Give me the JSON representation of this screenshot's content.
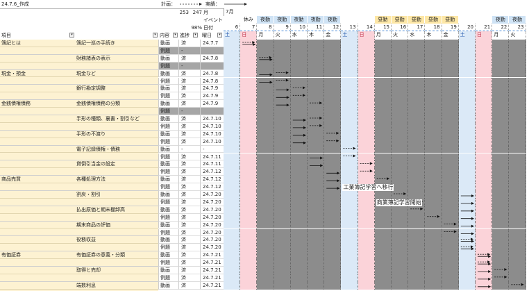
{
  "header": {
    "created": "24.7.6_作成",
    "plan_label": "計画：",
    "actual_label": "実績：",
    "total_count": "253",
    "done_count": "247",
    "month_label": "月",
    "percent": "98%",
    "event_label": "イベント",
    "date_label": "日付",
    "weekday_label": "曜日"
  },
  "columns": {
    "item": "項目",
    "content": "内容",
    "progress": "進捗"
  },
  "month": {
    "label": "7月"
  },
  "days": [
    {
      "d": "6",
      "w": "土",
      "kind": "sat",
      "event": ""
    },
    {
      "d": "7",
      "w": "日",
      "kind": "sun",
      "event": "休み"
    },
    {
      "d": "8",
      "w": "月",
      "kind": "work",
      "event": "夜勤"
    },
    {
      "d": "9",
      "w": "火",
      "kind": "work",
      "event": "夜勤"
    },
    {
      "d": "10",
      "w": "水",
      "kind": "work",
      "event": "夜勤"
    },
    {
      "d": "11",
      "w": "木",
      "kind": "work",
      "event": "夜勤"
    },
    {
      "d": "12",
      "w": "金",
      "kind": "work",
      "event": "夜勤"
    },
    {
      "d": "13",
      "w": "土",
      "kind": "sat",
      "event": ""
    },
    {
      "d": "14",
      "w": "日",
      "kind": "sun",
      "event": ""
    },
    {
      "d": "15",
      "w": "月",
      "kind": "work",
      "event": "昼勤"
    },
    {
      "d": "16",
      "w": "火",
      "kind": "work",
      "event": "昼勤"
    },
    {
      "d": "17",
      "w": "水",
      "kind": "work",
      "event": "昼勤"
    },
    {
      "d": "18",
      "w": "木",
      "kind": "work",
      "event": "昼勤"
    },
    {
      "d": "19",
      "w": "金",
      "kind": "work",
      "event": "昼勤"
    },
    {
      "d": "20",
      "w": "土",
      "kind": "sat",
      "event": ""
    },
    {
      "d": "21",
      "w": "日",
      "kind": "sun",
      "event": ""
    },
    {
      "d": "22",
      "w": "月",
      "kind": "work",
      "event": "夜勤"
    },
    {
      "d": "23",
      "w": "火",
      "kind": "work",
      "event": "夜勤"
    }
  ],
  "rows": [
    {
      "cat": "簿記とは",
      "task": "簿記一巡の手続き",
      "type": "動画",
      "prog": "済",
      "date": "24.7.7",
      "plan": 1,
      "act": 1,
      "cont": false,
      "act_len": 1,
      "shade": false
    },
    {
      "cat": "",
      "task": "",
      "type": "例題",
      "prog": "-",
      "date": "",
      "plan": null,
      "act": null,
      "cont": true,
      "shade": true
    },
    {
      "cat": "",
      "task": "財務諸表の表示",
      "type": "動画",
      "prog": "済",
      "date": "24.7.8",
      "plan": 2,
      "act": 2,
      "cont": false,
      "shade": false
    },
    {
      "cat": "",
      "task": "",
      "type": "例題",
      "prog": "-",
      "date": "",
      "plan": null,
      "act": null,
      "cont": true,
      "shade": true
    },
    {
      "cat": "現金・預金",
      "task": "現金など",
      "type": "動画",
      "prog": "済",
      "date": "24.7.8",
      "plan": 3,
      "act": 2,
      "cont": false,
      "shade": false
    },
    {
      "cat": "",
      "task": "",
      "type": "例題",
      "prog": "済",
      "date": "24.7.8",
      "plan": 3,
      "act": 2,
      "cont": true,
      "shade": false
    },
    {
      "cat": "",
      "task": "銀行勘定調整",
      "type": "動画",
      "prog": "済",
      "date": "24.7.9",
      "plan": 4,
      "act": 3,
      "cont": false,
      "shade": false
    },
    {
      "cat": "",
      "task": "",
      "type": "例題",
      "prog": "済",
      "date": "24.7.9",
      "plan": 4,
      "act": 3,
      "cont": true,
      "shade": false
    },
    {
      "cat": "金銭債権債務",
      "task": "金銭債権債務の分類",
      "type": "動画",
      "prog": "済",
      "date": "24.7.9",
      "plan": 5,
      "act": 3,
      "cont": false,
      "shade": false
    },
    {
      "cat": "",
      "task": "",
      "type": "例題",
      "prog": "-",
      "date": "",
      "plan": null,
      "act": null,
      "cont": true,
      "shade": true
    },
    {
      "cat": "",
      "task": "手形の種類、裏書・割引など",
      "type": "動画",
      "prog": "済",
      "date": "24.7.10",
      "plan": 5,
      "act": 4,
      "cont": false,
      "shade": false
    },
    {
      "cat": "",
      "task": "",
      "type": "例題",
      "prog": "済",
      "date": "24.7.10",
      "plan": 5,
      "act": 4,
      "cont": true,
      "shade": false
    },
    {
      "cat": "",
      "task": "手形の不渡り",
      "type": "動画",
      "prog": "済",
      "date": "24.7.10",
      "plan": 6,
      "act": 4,
      "cont": false,
      "shade": false
    },
    {
      "cat": "",
      "task": "",
      "type": "例題",
      "prog": "済",
      "date": "24.7.10",
      "plan": 6,
      "act": 4,
      "cont": true,
      "shade": false
    },
    {
      "cat": "",
      "task": "電子記録債権・債務",
      "type": "動画",
      "prog": "-",
      "date": "-",
      "plan": 7,
      "act": null,
      "cont": false,
      "shade": false
    },
    {
      "cat": "",
      "task": "",
      "type": "例題",
      "prog": "済",
      "date": "24.7.11",
      "plan": 7,
      "act": 5,
      "cont": true,
      "shade": false
    },
    {
      "cat": "",
      "task": "貸倒引当金の設定",
      "type": "動画",
      "prog": "済",
      "date": "24.7.11",
      "plan": 8,
      "act": 5,
      "cont": false,
      "shade": false
    },
    {
      "cat": "",
      "task": "",
      "type": "例題",
      "prog": "済",
      "date": "24.7.12",
      "plan": 8,
      "act": 6,
      "cont": true,
      "shade": false
    },
    {
      "cat": "商品売買",
      "task": "各種処理方法",
      "type": "動画",
      "prog": "済",
      "date": "24.7.12",
      "plan": 9,
      "act": 6,
      "cont": false,
      "shade": false
    },
    {
      "cat": "",
      "task": "",
      "type": "例題",
      "prog": "済",
      "date": "24.7.12",
      "plan": 9,
      "act": 6,
      "cont": true,
      "shade": false
    },
    {
      "cat": "",
      "task": "割戻・割引",
      "type": "動画",
      "prog": "済",
      "date": "24.7.20",
      "plan": 10,
      "act": 14,
      "cont": false,
      "shade": false
    },
    {
      "cat": "",
      "task": "",
      "type": "例題",
      "prog": "済",
      "date": "24.7.20",
      "plan": 11,
      "act": 14,
      "cont": true,
      "shade": false
    },
    {
      "cat": "",
      "task": "払出原価と期末棚卸高",
      "type": "動画",
      "prog": "済",
      "date": "24.7.20",
      "plan": 11,
      "act": 14,
      "cont": false,
      "shade": false
    },
    {
      "cat": "",
      "task": "",
      "type": "例題",
      "prog": "済",
      "date": "24.7.20",
      "plan": 12,
      "act": 14,
      "cont": true,
      "shade": false
    },
    {
      "cat": "",
      "task": "期末商品の評価",
      "type": "動画",
      "prog": "済",
      "date": "24.7.20",
      "plan": 13,
      "act": 14,
      "cont": false,
      "shade": false
    },
    {
      "cat": "",
      "task": "",
      "type": "例題",
      "prog": "済",
      "date": "24.7.20",
      "plan": 13,
      "act": 14,
      "cont": true,
      "shade": false
    },
    {
      "cat": "",
      "task": "役務収益",
      "type": "動画",
      "prog": "済",
      "date": "24.7.20",
      "plan": 14,
      "act": 14,
      "cont": false,
      "shade": false
    },
    {
      "cat": "",
      "task": "",
      "type": "例題",
      "prog": "済",
      "date": "24.7.20",
      "plan": 14,
      "act": 14,
      "cont": true,
      "shade": false
    },
    {
      "cat": "有価証券",
      "task": "有価証券の意義・分類",
      "type": "動画",
      "prog": "済",
      "date": "24.7.21",
      "plan": 15,
      "act": 15,
      "cont": false,
      "shade": false
    },
    {
      "cat": "",
      "task": "",
      "type": "例題",
      "prog": "済",
      "date": "24.7.21",
      "plan": 15,
      "act": 15,
      "cont": true,
      "shade": false
    },
    {
      "cat": "",
      "task": "取得と売却",
      "type": "動画",
      "prog": "済",
      "date": "24.7.21",
      "plan": 16,
      "act": 15,
      "cont": false,
      "shade": false
    },
    {
      "cat": "",
      "task": "",
      "type": "例題",
      "prog": "済",
      "date": "24.7.21",
      "plan": 16,
      "act": 15,
      "cont": true,
      "shade": false
    },
    {
      "cat": "",
      "task": "端数利息",
      "type": "動画",
      "prog": "済",
      "date": "24.7.21",
      "plan": 17,
      "act": 15,
      "cont": false,
      "shade": false
    }
  ],
  "annotations": [
    {
      "text": "工業簿記学習へ移行",
      "row": 19,
      "col": 7
    },
    {
      "text": "商業簿記学習開始",
      "row": 21,
      "col": 9
    }
  ],
  "colors": {
    "header_bg": "#ffffff",
    "item_bg": "#fdf2d2",
    "sat_bg": "#dbe9f7",
    "sun_bg": "#fbd3d9",
    "work_bg": "#8c8c8c",
    "shade_bg": "#a6a6a6",
    "night_bg": "#cfe3f5",
    "day_bg": "#fde7a6",
    "rest_bg": "#ffffff"
  }
}
